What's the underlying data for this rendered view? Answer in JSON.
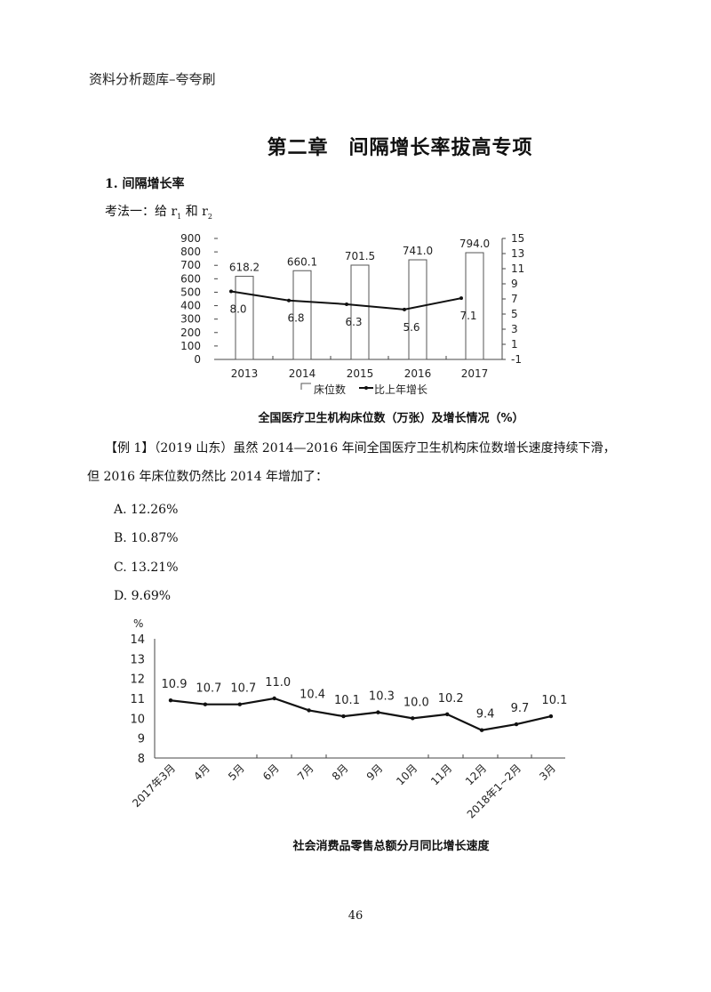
{
  "header": {
    "title": "资料分析题库–夸夸刷"
  },
  "chapter": {
    "title": "第二章　间隔增长率拔高专项"
  },
  "section": {
    "title": "1. 间隔增长率"
  },
  "method": {
    "prefix": "考法一：给 r",
    "sub1": "1",
    "mid": " 和 r",
    "sub2": "2"
  },
  "chart1": {
    "caption": "全国医疗卫生机构床位数（万张）及增长情况（%）",
    "legend": {
      "bars": "床位数",
      "line": "比上年增长"
    },
    "left_ticks": [
      "900",
      "800",
      "700",
      "600",
      "500",
      "400",
      "300",
      "200",
      "100",
      "0"
    ],
    "right_ticks": [
      "15",
      "13",
      "11",
      "9",
      "7",
      "5",
      "3",
      "1",
      "-1"
    ],
    "years": [
      "2013",
      "2014",
      "2015",
      "2016",
      "2017"
    ],
    "bar_labels": [
      "618.2",
      "660.1",
      "701.5",
      "741.0",
      "794.0"
    ],
    "line_labels": [
      "8.0",
      "6.8",
      "6.3",
      "5.6",
      "7.1"
    ]
  },
  "question": {
    "line1": "【例 1】（2019 山东）虽然 2014—2016 年间全国医疗卫生机构床位数增长速度持续下滑，",
    "line2": "但 2016 年床位数仍然比 2014 年增加了：",
    "options": [
      "A. 12.26%",
      "B. 10.87%",
      "C. 13.21%",
      "D. 9.69%"
    ]
  },
  "chart2": {
    "caption": "社会消费品零售总额分月同比增长速度",
    "unit": "%",
    "y_ticks": [
      "14",
      "13",
      "12",
      "11",
      "10",
      "9",
      "8"
    ],
    "months": [
      "2017年3月",
      "4月",
      "5月",
      "6月",
      "7月",
      "8月",
      "9月",
      "10月",
      "11月",
      "12月",
      "2018年1~2月",
      "3月"
    ],
    "value_labels": [
      "10.9",
      "10.7",
      "10.7",
      "11.0",
      "10.4",
      "10.1",
      "10.3",
      "10.0",
      "10.2",
      "9.4",
      "9.7",
      "10.1"
    ]
  },
  "page": {
    "number": "46"
  },
  "chart_data": [
    {
      "type": "bar+line",
      "title": "全国医疗卫生机构床位数（万张）及增长情况（%）",
      "categories": [
        "2013",
        "2014",
        "2015",
        "2016",
        "2017"
      ],
      "series": [
        {
          "name": "床位数",
          "type": "bar",
          "axis": "left",
          "values": [
            618.2,
            660.1,
            701.5,
            741.0,
            794.0
          ]
        },
        {
          "name": "比上年增长",
          "type": "line",
          "axis": "right",
          "values": [
            8.0,
            6.8,
            6.3,
            5.6,
            7.1
          ]
        }
      ],
      "xlabel": "",
      "ylabel_left": "万张",
      "ylabel_right": "%",
      "ylim_left": [
        0,
        900
      ],
      "ylim_right": [
        -1,
        15
      ],
      "left_ticks": [
        0,
        100,
        200,
        300,
        400,
        500,
        600,
        700,
        800,
        900
      ],
      "right_ticks": [
        -1,
        1,
        3,
        5,
        7,
        9,
        11,
        13,
        15
      ],
      "legend_position": "bottom",
      "grid": false
    },
    {
      "type": "line",
      "title": "社会消费品零售总额分月同比增长速度",
      "categories": [
        "2017年3月",
        "4月",
        "5月",
        "6月",
        "7月",
        "8月",
        "9月",
        "10月",
        "11月",
        "12月",
        "2018年1~2月",
        "3月"
      ],
      "values": [
        10.9,
        10.7,
        10.7,
        11.0,
        10.4,
        10.1,
        10.3,
        10.0,
        10.2,
        9.4,
        9.7,
        10.1
      ],
      "xlabel": "",
      "ylabel": "%",
      "ylim": [
        8,
        14
      ],
      "y_ticks": [
        8,
        9,
        10,
        11,
        12,
        13,
        14
      ],
      "grid": false
    }
  ]
}
